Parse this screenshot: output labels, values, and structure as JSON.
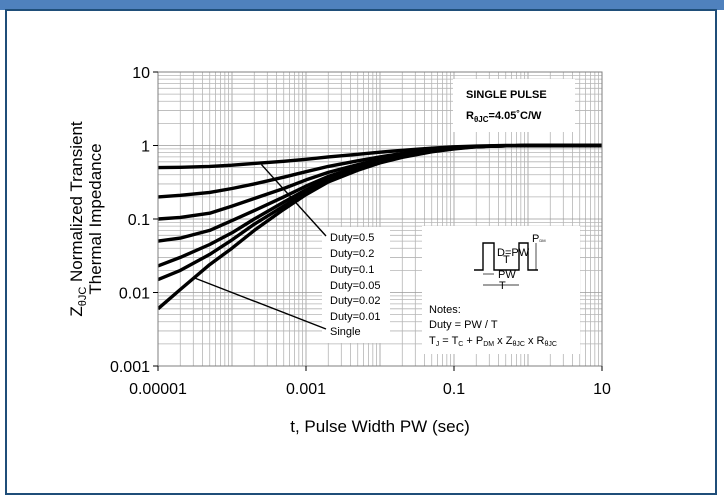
{
  "window": {
    "header_color": "#4f81bd",
    "border_color": "#1f4e79"
  },
  "chart_data": {
    "type": "line",
    "title": "",
    "xlabel": "t, Pulse Width PW (sec)",
    "ylabel_parts": {
      "prefix": "Z",
      "subscript": "θJC",
      "line1": " Normalized Transient",
      "line2": "Thermal Impedance"
    },
    "x_scale": "log",
    "y_scale": "log",
    "xlim": [
      1e-05,
      10
    ],
    "ylim": [
      0.001,
      10
    ],
    "x_ticks": [
      "0.00001",
      "0.001",
      "0.1",
      "10"
    ],
    "y_ticks": [
      "10",
      "1",
      "0.1",
      "0.01",
      "0.001"
    ],
    "grid": true,
    "x": [
      1e-05,
      2e-05,
      5e-05,
      0.0001,
      0.0002,
      0.0005,
      0.001,
      0.002,
      0.005,
      0.01,
      0.02,
      0.05,
      0.1,
      0.2,
      0.5,
      1,
      2,
      5,
      10
    ],
    "series": [
      {
        "name": "Duty=0.5",
        "values": [
          0.5,
          0.505,
          0.52,
          0.54,
          0.57,
          0.61,
          0.65,
          0.7,
          0.76,
          0.81,
          0.86,
          0.92,
          0.96,
          0.98,
          1,
          1,
          1,
          1,
          1
        ]
      },
      {
        "name": "Duty=0.2",
        "values": [
          0.2,
          0.21,
          0.23,
          0.26,
          0.3,
          0.37,
          0.44,
          0.52,
          0.62,
          0.7,
          0.78,
          0.87,
          0.93,
          0.97,
          0.99,
          1,
          1,
          1,
          1
        ]
      },
      {
        "name": "Duty=0.1",
        "values": [
          0.1,
          0.105,
          0.12,
          0.15,
          0.19,
          0.26,
          0.34,
          0.43,
          0.55,
          0.65,
          0.74,
          0.85,
          0.92,
          0.97,
          0.99,
          1,
          1,
          1,
          1
        ]
      },
      {
        "name": "Duty=0.05",
        "values": [
          0.05,
          0.055,
          0.07,
          0.095,
          0.13,
          0.2,
          0.28,
          0.38,
          0.51,
          0.62,
          0.72,
          0.84,
          0.92,
          0.97,
          0.99,
          1,
          1,
          1,
          1
        ]
      },
      {
        "name": "Duty=0.02",
        "values": [
          0.023,
          0.03,
          0.045,
          0.065,
          0.1,
          0.17,
          0.25,
          0.35,
          0.48,
          0.6,
          0.71,
          0.83,
          0.91,
          0.97,
          0.99,
          1,
          1,
          1,
          1
        ]
      },
      {
        "name": "Duty=0.01",
        "values": [
          0.015,
          0.02,
          0.033,
          0.052,
          0.085,
          0.15,
          0.23,
          0.33,
          0.47,
          0.59,
          0.7,
          0.83,
          0.91,
          0.97,
          0.99,
          1,
          1,
          1,
          1
        ]
      },
      {
        "name": "Single",
        "values": [
          0.006,
          0.011,
          0.024,
          0.04,
          0.07,
          0.135,
          0.215,
          0.32,
          0.46,
          0.58,
          0.69,
          0.82,
          0.9,
          0.96,
          0.99,
          1,
          1,
          1,
          1
        ]
      }
    ],
    "legend": [
      "Duty=0.5",
      "Duty=0.2",
      "Duty=0.1",
      "Duty=0.05",
      "Duty=0.02",
      "Duty=0.01",
      "Single"
    ],
    "annotations": {
      "single_pulse_title": "SINGLE PULSE",
      "rth_prefix": "R",
      "rth_sub": "θJC",
      "rth_value": "=4.05˚C/W",
      "notes_title": "Notes:",
      "notes_duty": "Duty = PW / T",
      "diagram_labels": {
        "pdm": "P",
        "pdm_sub": "DM",
        "pw": "PW",
        "t": "T",
        "duty_frac": "D=",
        "duty_num": "PW",
        "duty_den": "T"
      },
      "eq": {
        "tj": "T",
        "tj_sub": "J",
        "eq_a": " = T",
        "tc_sub": "C",
        "eq_b": " + P",
        "pdm_sub": "DM",
        "eq_c": " x Z",
        "z_sub": "θJC",
        "eq_d": " x R",
        "r_sub": "θJC"
      }
    }
  }
}
